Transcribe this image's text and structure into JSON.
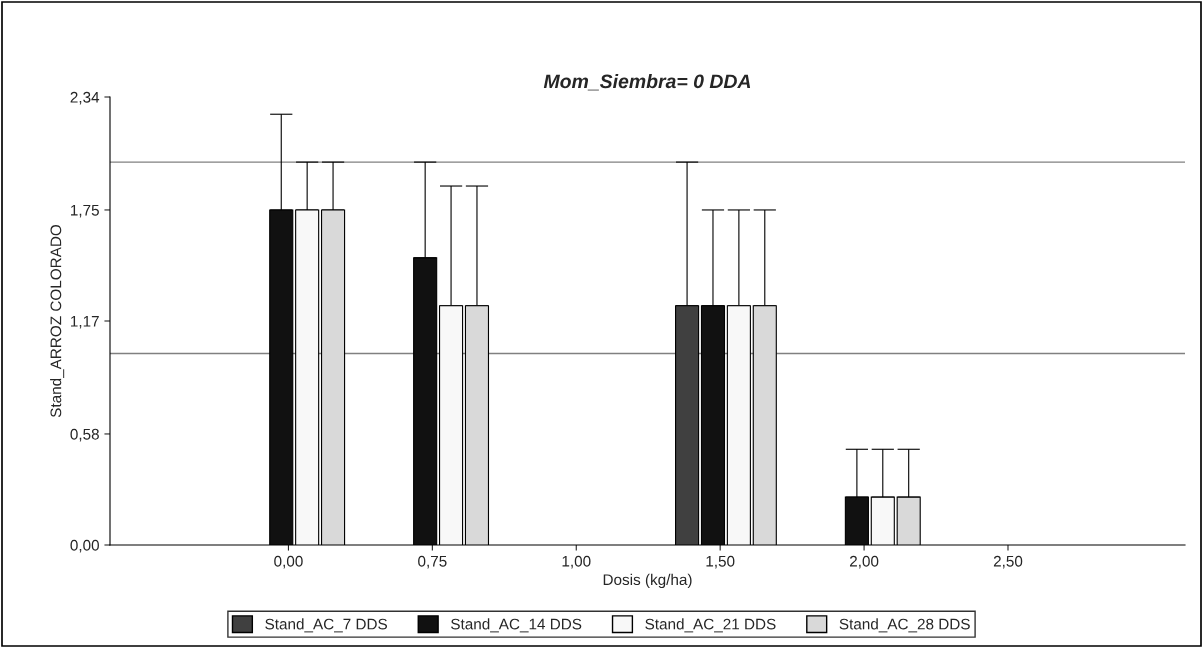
{
  "chart_data": {
    "type": "bar",
    "title": "Mom_Siembra= 0 DDA",
    "xlabel": "Dosis (kg/ha)",
    "ylabel": "Stand_ARROZ COLORADO",
    "categories": [
      "0,00",
      "0,75",
      "1,00",
      "1,50",
      "2,00",
      "2,50"
    ],
    "series": [
      {
        "name": "Stand_AC_7 DDS",
        "color": "#404040",
        "values": [
          null,
          null,
          null,
          1.25,
          null,
          null
        ],
        "errors": [
          null,
          null,
          null,
          [
            1.25,
            2.0
          ],
          null,
          null
        ]
      },
      {
        "name": "Stand_AC_14 DDS",
        "color": "#111111",
        "values": [
          1.75,
          1.5,
          null,
          1.25,
          0.25,
          null
        ],
        "errors": [
          [
            1.75,
            2.25
          ],
          [
            1.5,
            2.0
          ],
          null,
          [
            1.25,
            1.75
          ],
          [
            0.25,
            0.5
          ],
          null
        ]
      },
      {
        "name": "Stand_AC_21 DDS",
        "color": "#f8f8f8",
        "values": [
          1.75,
          1.25,
          null,
          1.25,
          0.25,
          null
        ],
        "errors": [
          [
            1.75,
            2.0
          ],
          [
            1.25,
            1.875
          ],
          null,
          [
            1.25,
            1.75
          ],
          [
            0.25,
            0.5
          ],
          null
        ]
      },
      {
        "name": "Stand_AC_28 DDS",
        "color": "#d9d9d9",
        "values": [
          1.75,
          1.25,
          null,
          1.25,
          0.25,
          null
        ],
        "errors": [
          [
            1.75,
            2.0
          ],
          [
            1.25,
            1.875
          ],
          null,
          [
            1.25,
            1.75
          ],
          [
            0.25,
            0.5
          ],
          null
        ]
      }
    ],
    "ylim": [
      0,
      2.34
    ],
    "yticks": [
      {
        "value": 0,
        "label": "0,00"
      },
      {
        "value": 0.58,
        "label": "0,58"
      },
      {
        "value": 1.17,
        "label": "1,17"
      },
      {
        "value": 1.75,
        "label": "1,75"
      },
      {
        "value": 2.34,
        "label": "2,34"
      }
    ],
    "ref_lines": [
      {
        "axis": "y",
        "value": 1.0,
        "color": "#808080"
      },
      {
        "axis": "y",
        "value": 2.0,
        "color": "#808080"
      }
    ],
    "grid": false,
    "legend": "bottom"
  }
}
